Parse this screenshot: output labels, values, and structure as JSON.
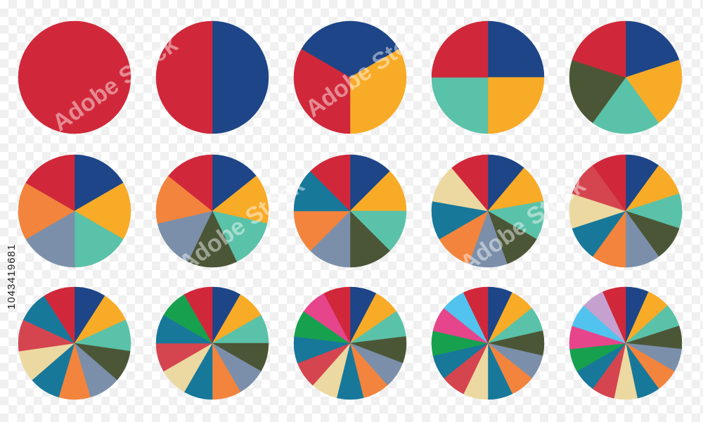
{
  "stock_id": "1043419681",
  "watermark": "Adobe Stock",
  "palette": {
    "blue": "#1d4587",
    "yellow": "#f8ab27",
    "teal": "#5ac2a8",
    "olive": "#4b5637",
    "slate": "#7b8faa",
    "orange": "#f2843d",
    "tealblue": "#17789a",
    "beige": "#ecd9a1",
    "pinkred": "#d5454f",
    "red": "#d0283a",
    "green": "#17a14e",
    "pink": "#e6458c",
    "skyblue": "#52c3ee",
    "lilac": "#c6a0cf"
  },
  "chart_data": {
    "type": "pie",
    "note_order": "clockwise from top",
    "pies": [
      {
        "slices": 1,
        "values": [
          1
        ],
        "colors": [
          "red"
        ]
      },
      {
        "slices": 2,
        "values": [
          1,
          1
        ],
        "colors": [
          "blue",
          "red"
        ]
      },
      {
        "slices": 3,
        "values": [
          1,
          1,
          1
        ],
        "colors": [
          "blue",
          "yellow",
          "red"
        ]
      },
      {
        "slices": 4,
        "values": [
          1,
          1,
          1,
          1
        ],
        "colors": [
          "blue",
          "yellow",
          "teal",
          "red"
        ]
      },
      {
        "slices": 5,
        "values": [
          1,
          1,
          1,
          1,
          1
        ],
        "colors": [
          "blue",
          "yellow",
          "teal",
          "olive",
          "red"
        ]
      },
      {
        "slices": 6,
        "values": [
          1,
          1,
          1,
          1,
          1,
          1
        ],
        "colors": [
          "blue",
          "yellow",
          "teal",
          "slate",
          "orange",
          "red"
        ]
      },
      {
        "slices": 7,
        "values": [
          1,
          1,
          1,
          1,
          1,
          1,
          1
        ],
        "colors": [
          "blue",
          "yellow",
          "teal",
          "olive",
          "slate",
          "orange",
          "red"
        ]
      },
      {
        "slices": 8,
        "values": [
          1,
          1,
          1,
          1,
          1,
          1,
          1,
          1
        ],
        "colors": [
          "blue",
          "yellow",
          "teal",
          "olive",
          "slate",
          "orange",
          "tealblue",
          "red"
        ]
      },
      {
        "slices": 9,
        "values": [
          1,
          1,
          1,
          1,
          1,
          1,
          1,
          1,
          1
        ],
        "colors": [
          "blue",
          "yellow",
          "teal",
          "olive",
          "slate",
          "orange",
          "tealblue",
          "beige",
          "red"
        ]
      },
      {
        "slices": 10,
        "values": [
          1,
          1,
          1,
          1,
          1,
          1,
          1,
          1,
          1,
          1
        ],
        "colors": [
          "blue",
          "yellow",
          "teal",
          "olive",
          "slate",
          "orange",
          "tealblue",
          "beige",
          "pinkred",
          "red"
        ]
      },
      {
        "slices": 11,
        "values": [
          1,
          1,
          1,
          1,
          1,
          1,
          1,
          1,
          1,
          1,
          1
        ],
        "colors": [
          "blue",
          "yellow",
          "teal",
          "olive",
          "slate",
          "orange",
          "tealblue",
          "beige",
          "pinkred",
          "tealblue",
          "red"
        ]
      },
      {
        "slices": 12,
        "values": [
          1,
          1,
          1,
          1,
          1,
          1,
          1,
          1,
          1,
          1,
          1,
          1
        ],
        "colors": [
          "blue",
          "yellow",
          "teal",
          "olive",
          "slate",
          "orange",
          "tealblue",
          "beige",
          "pinkred",
          "tealblue",
          "green",
          "red"
        ]
      },
      {
        "slices": 13,
        "values": [
          1,
          1,
          1,
          1,
          1,
          1,
          1,
          1,
          1,
          1,
          1,
          1,
          1
        ],
        "colors": [
          "blue",
          "yellow",
          "teal",
          "olive",
          "slate",
          "orange",
          "tealblue",
          "beige",
          "pinkred",
          "tealblue",
          "green",
          "pink",
          "red"
        ]
      },
      {
        "slices": 14,
        "values": [
          1,
          1,
          1,
          1,
          1,
          1,
          1,
          1,
          1,
          1,
          1,
          1,
          1,
          1
        ],
        "colors": [
          "blue",
          "yellow",
          "teal",
          "olive",
          "slate",
          "orange",
          "tealblue",
          "beige",
          "pinkred",
          "tealblue",
          "green",
          "pink",
          "skyblue",
          "red"
        ]
      },
      {
        "slices": 15,
        "values": [
          1,
          1,
          1,
          1,
          1,
          1,
          1,
          1,
          1,
          1,
          1,
          1,
          1,
          1,
          1
        ],
        "colors": [
          "blue",
          "yellow",
          "teal",
          "olive",
          "slate",
          "orange",
          "tealblue",
          "beige",
          "pinkred",
          "tealblue",
          "green",
          "pink",
          "skyblue",
          "lilac",
          "red"
        ]
      }
    ]
  }
}
